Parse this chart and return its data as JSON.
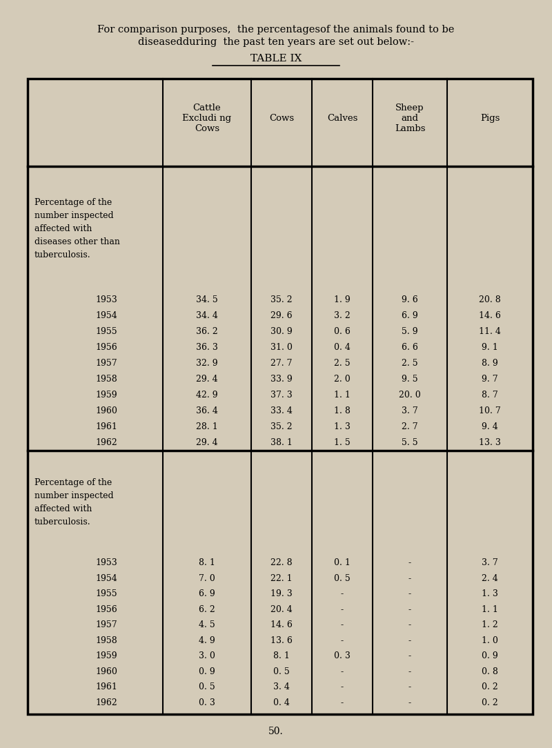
{
  "title_line1": "For comparison purposes,  the percentagesof the animals found to be",
  "title_line2": "diseasedduring  the past ten years are set out below:-",
  "table_title": "TABLE IX",
  "page_number": "50.",
  "bg_color": "#d4cbb8",
  "col_headers": [
    "Cattle\nExcludi ng\nCows",
    "Cows",
    "Calves",
    "Sheep\nand\nLambs",
    "Pigs"
  ],
  "section1_label": [
    "Percentage of the",
    "number inspected",
    "affected with",
    "diseases other than",
    "tuberculosis."
  ],
  "section1_years": [
    1953,
    1954,
    1955,
    1956,
    1957,
    1958,
    1959,
    1960,
    1961,
    1962
  ],
  "section1_data_str": [
    [
      "34. 5",
      "35. 2",
      "1. 9",
      "9. 6",
      "20. 8"
    ],
    [
      "34. 4",
      "29. 6",
      "3. 2",
      "6. 9",
      "14. 6"
    ],
    [
      "36. 2",
      "30. 9",
      "0. 6",
      "5. 9",
      "11. 4"
    ],
    [
      "36. 3",
      "31. 0",
      "0. 4",
      "6. 6",
      "9. 1"
    ],
    [
      "32. 9",
      "27. 7",
      "2. 5",
      "2. 5",
      "8. 9"
    ],
    [
      "29. 4",
      "33. 9",
      "2. 0",
      "9. 5",
      "9. 7"
    ],
    [
      "42. 9",
      "37. 3",
      "1. 1",
      "20. 0",
      "8. 7"
    ],
    [
      "36. 4",
      "33. 4",
      "1. 8",
      "3. 7",
      "10. 7"
    ],
    [
      "28. 1",
      "35. 2",
      "1. 3",
      "2. 7",
      "9. 4"
    ],
    [
      "29. 4",
      "38. 1",
      "1. 5",
      "5. 5",
      "13. 3"
    ]
  ],
  "section2_label": [
    "Percentage of the",
    "number inspected",
    "affected with",
    "tuberculosis."
  ],
  "section2_years": [
    1953,
    1954,
    1955,
    1956,
    1957,
    1958,
    1959,
    1960,
    1961,
    1962
  ],
  "section2_data_str": [
    [
      "8. 1",
      "22. 8",
      "0. 1",
      "-",
      "3. 7"
    ],
    [
      "7. 0",
      "22. 1",
      "0. 5",
      "-",
      "2. 4"
    ],
    [
      "6. 9",
      "19. 3",
      "-",
      "-",
      "1. 3"
    ],
    [
      "6. 2",
      "20. 4",
      "-",
      "-",
      "1. 1"
    ],
    [
      "4. 5",
      "14. 6",
      "-",
      "-",
      "1. 2"
    ],
    [
      "4. 9",
      "13. 6",
      "-",
      "-",
      "1. 0"
    ],
    [
      "3. 0",
      "8. 1",
      "0. 3",
      "-",
      "0. 9"
    ],
    [
      "0. 9",
      "0. 5",
      "-",
      "-",
      "0. 8"
    ],
    [
      "0. 5",
      "3. 4",
      "-",
      "-",
      "0. 2"
    ],
    [
      "0. 3",
      "0. 4",
      "-",
      "-",
      "0. 2"
    ]
  ]
}
